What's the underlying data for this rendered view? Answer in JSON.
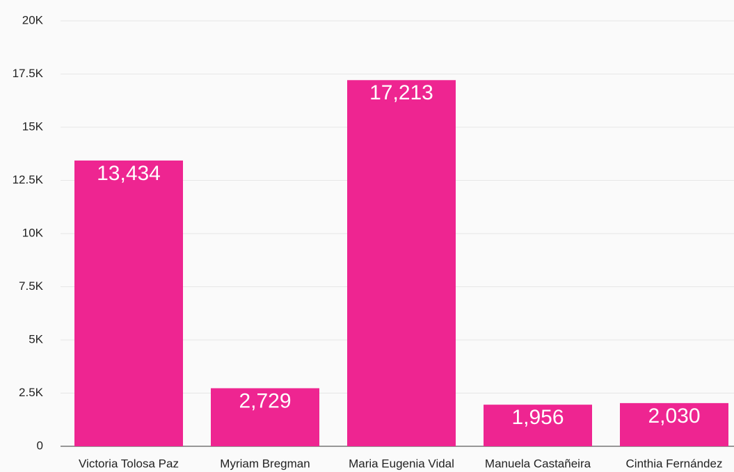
{
  "chart_data": {
    "type": "bar",
    "categories": [
      "Victoria Tolosa Paz",
      "Myriam Bregman",
      "Maria Eugenia Vidal",
      "Manuela Castañeira",
      "Cinthia Fernández"
    ],
    "values": [
      13434,
      2729,
      17213,
      1956,
      2030
    ],
    "value_labels": [
      "13,434",
      "2,729",
      "17,213",
      "1,956",
      "2,030"
    ],
    "color": "#ee2591",
    "ylim": [
      0,
      20000
    ],
    "yticks": [
      0,
      {
        "value": 2500,
        "label": "2.5K"
      },
      {
        "value": 5000,
        "label": "5K"
      },
      {
        "value": 7500,
        "label": "7.5K"
      },
      {
        "value": 10000,
        "label": "10K"
      },
      {
        "value": 12500,
        "label": "12.5K"
      },
      {
        "value": 15000,
        "label": "15K"
      },
      {
        "value": 17500,
        "label": "17.5K"
      },
      {
        "value": 20000,
        "label": "20K"
      }
    ],
    "grid": true
  }
}
